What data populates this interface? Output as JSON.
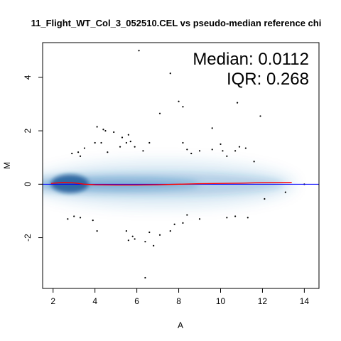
{
  "chart_data": {
    "type": "scatter",
    "title": "11_Flight_WT_Col_3_052510.CEL vs pseudo-median reference chi",
    "xlabel": "A",
    "ylabel": "M",
    "xlim": [
      1.5,
      14.7
    ],
    "ylim": [
      -3.9,
      5.3
    ],
    "x_ticks": [
      2,
      4,
      6,
      8,
      10,
      12,
      14
    ],
    "y_ticks": [
      -2,
      0,
      2,
      4
    ],
    "stats": {
      "median_text": "Median: 0.0112",
      "iqr_text": "IQR: 0.268"
    },
    "density_color": "#1f6fb4",
    "zero_line_color": "#0000ff",
    "loess_color": "#ff0000",
    "loess_line": {
      "x": [
        1.9,
        2.5,
        3.0,
        3.5,
        4.0,
        5.0,
        6.0,
        7.0,
        8.0,
        9.0,
        10.0,
        11.0,
        12.0,
        13.4
      ],
      "y": [
        0.03,
        0.07,
        0.05,
        0.0,
        -0.02,
        -0.03,
        -0.03,
        -0.02,
        0.0,
        0.02,
        0.03,
        0.04,
        0.06,
        0.07
      ]
    },
    "outliers": {
      "x": [
        6.1,
        7.6,
        8.0,
        8.2,
        11.9,
        10.8,
        7.1,
        9.6,
        2.9,
        3.2,
        3.3,
        3.5,
        4.1,
        4.4,
        4.5,
        4.9,
        5.3,
        5.6,
        5.5,
        5.7,
        4.0,
        4.3,
        4.6,
        5.2,
        5.9,
        6.3,
        6.6,
        8.2,
        8.4,
        8.6,
        9.0,
        9.6,
        10.0,
        10.1,
        10.3,
        10.7,
        10.9,
        11.2,
        11.6,
        2.7,
        3.0,
        3.3,
        3.9,
        4.1,
        5.5,
        5.6,
        5.8,
        5.9,
        6.4,
        6.8,
        7.1,
        7.6,
        7.8,
        8.2,
        8.4,
        9.0,
        10.3,
        10.7,
        11.3,
        12.1,
        13.1,
        6.4,
        6.6,
        14.0
      ],
      "y": [
        5.0,
        4.15,
        3.1,
        2.9,
        2.55,
        3.05,
        2.65,
        2.1,
        1.15,
        1.2,
        1.05,
        1.35,
        2.15,
        2.05,
        2.0,
        1.95,
        1.75,
        1.85,
        1.55,
        1.6,
        1.55,
        1.55,
        1.2,
        1.4,
        1.4,
        1.25,
        1.55,
        1.55,
        1.3,
        1.15,
        1.25,
        1.3,
        1.5,
        1.25,
        1.05,
        1.25,
        1.4,
        1.35,
        0.85,
        -1.3,
        -1.2,
        -1.25,
        -1.35,
        -1.75,
        -1.75,
        -2.1,
        -1.95,
        -2.05,
        -2.15,
        -2.3,
        -1.9,
        -1.75,
        -1.5,
        -1.45,
        -1.15,
        -1.3,
        -1.25,
        -1.2,
        -1.25,
        -0.55,
        -0.3,
        -3.5,
        -1.8,
        0.0
      ]
    }
  }
}
